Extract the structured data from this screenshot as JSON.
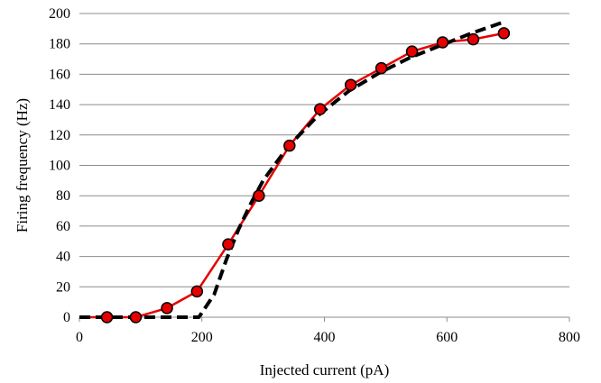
{
  "chart_data": {
    "type": "line",
    "title": "",
    "xlabel": "Injected current (pA)",
    "ylabel": "Firing frequency (Hz)",
    "xlim": [
      0,
      800
    ],
    "ylim": [
      0,
      200
    ],
    "x_ticks": [
      0,
      200,
      400,
      600,
      800
    ],
    "y_ticks": [
      0,
      20,
      40,
      60,
      80,
      100,
      120,
      140,
      160,
      180,
      200
    ],
    "grid": "horizontal",
    "series": [
      {
        "style": "solid line with circular markers",
        "color": "#e60000",
        "marker_fill": "#e60000",
        "marker_stroke": "#000000",
        "x": [
          0,
          45,
          92,
          143,
          192,
          243,
          293,
          343,
          393,
          443,
          493,
          543,
          593,
          643,
          693
        ],
        "y": [
          0,
          0,
          0,
          6,
          17,
          48,
          80,
          113,
          137,
          153,
          164,
          175,
          181,
          183,
          187
        ]
      },
      {
        "style": "dashed line",
        "color": "#000000",
        "x": [
          0,
          50,
          100,
          150,
          195,
          220,
          240,
          260,
          280,
          300,
          340,
          390,
          440,
          490,
          540,
          590,
          640,
          690
        ],
        "y": [
          0,
          0,
          0,
          0,
          0,
          15,
          38,
          58,
          75,
          90,
          112,
          133,
          149,
          161,
          171,
          179,
          187,
          194
        ]
      }
    ]
  }
}
